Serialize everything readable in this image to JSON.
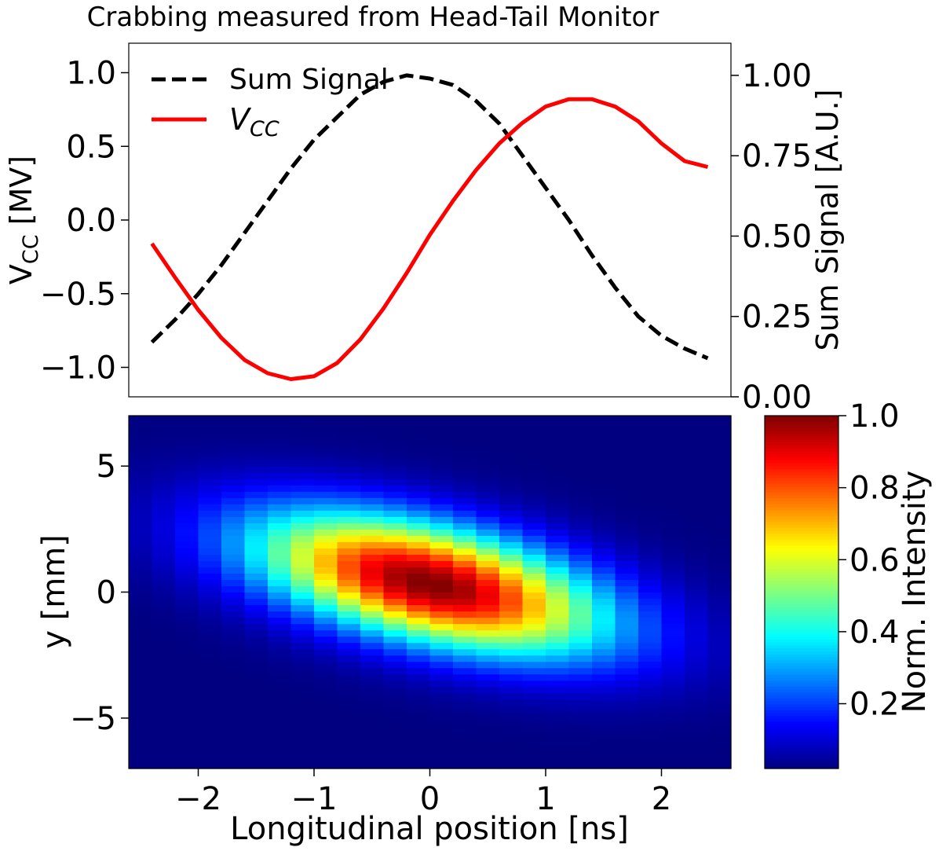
{
  "chart_data": [
    {
      "type": "line",
      "title": "Crabbing measured from Head-Tail Monitor",
      "xlim": [
        -2.6,
        2.6
      ],
      "ylabel_left": "V_CC [MV]",
      "ylim_left": [
        -1.2,
        1.2
      ],
      "yticks_left": [
        {
          "v": 1.0,
          "label": "1.0"
        },
        {
          "v": 0.5,
          "label": "0.5"
        },
        {
          "v": 0.0,
          "label": "0.0"
        },
        {
          "v": -0.5,
          "label": "−0.5"
        },
        {
          "v": -1.0,
          "label": "−1.0"
        }
      ],
      "ylabel_right": "Sum Signal [A.U.]",
      "ylim_right": [
        0.0,
        1.1
      ],
      "yticks_right": [
        {
          "v": 1.0,
          "label": "1.00"
        },
        {
          "v": 0.75,
          "label": "0.75"
        },
        {
          "v": 0.5,
          "label": "0.50"
        },
        {
          "v": 0.25,
          "label": "0.25"
        },
        {
          "v": 0.0,
          "label": "0.00"
        }
      ],
      "legend_position": "top-left",
      "x": [
        -2.4,
        -2.2,
        -2.0,
        -1.8,
        -1.6,
        -1.4,
        -1.2,
        -1.0,
        -0.8,
        -0.6,
        -0.4,
        -0.2,
        0.0,
        0.2,
        0.4,
        0.6,
        0.8,
        1.0,
        1.2,
        1.4,
        1.6,
        1.8,
        2.0,
        2.2,
        2.4
      ],
      "series": [
        {
          "name": "Sum Signal",
          "axis": "right",
          "color": "#000000",
          "style": "dashed",
          "values": [
            0.17,
            0.24,
            0.32,
            0.41,
            0.51,
            0.61,
            0.71,
            0.8,
            0.87,
            0.94,
            0.98,
            1.0,
            0.99,
            0.97,
            0.92,
            0.85,
            0.75,
            0.65,
            0.55,
            0.44,
            0.34,
            0.25,
            0.19,
            0.15,
            0.12
          ]
        },
        {
          "name": "V",
          "name_sub": "CC",
          "axis": "left",
          "color": "#ff0000",
          "style": "solid",
          "values": [
            -0.16,
            -0.39,
            -0.61,
            -0.8,
            -0.95,
            -1.04,
            -1.08,
            -1.06,
            -0.97,
            -0.81,
            -0.6,
            -0.36,
            -0.1,
            0.13,
            0.34,
            0.52,
            0.66,
            0.77,
            0.82,
            0.82,
            0.77,
            0.67,
            0.52,
            0.4,
            0.36
          ]
        }
      ]
    },
    {
      "type": "heatmap",
      "xlabel": "Longitudinal position [ns]",
      "ylabel": "y [mm]",
      "xlim": [
        -2.6,
        2.6
      ],
      "ylim": [
        -7,
        7
      ],
      "xticks": [
        {
          "v": -2,
          "label": "−2"
        },
        {
          "v": -1,
          "label": "−1"
        },
        {
          "v": 0,
          "label": "0"
        },
        {
          "v": 1,
          "label": "1"
        },
        {
          "v": 2,
          "label": "2"
        }
      ],
      "yticks": [
        {
          "v": 5,
          "label": "5"
        },
        {
          "v": 0,
          "label": "0"
        },
        {
          "v": -5,
          "label": "−5"
        }
      ],
      "x_bins": 26,
      "y_bins": 56,
      "intensity_model": {
        "amplitude": 1.0,
        "x_sigma_ns": 1.05,
        "y_sigma_mm": 1.65,
        "tilt_mm_per_ns": -0.95,
        "y_offset_mm": 0.35,
        "floor": 0.02
      },
      "colormap": "jet",
      "colorbar": {
        "label": "Norm. Intensity",
        "range": [
          0.02,
          1.0
        ],
        "ticks": [
          {
            "v": 1.0,
            "label": "1.0"
          },
          {
            "v": 0.8,
            "label": "0.8"
          },
          {
            "v": 0.6,
            "label": "0.6"
          },
          {
            "v": 0.4,
            "label": "0.4"
          },
          {
            "v": 0.2,
            "label": "0.2"
          }
        ]
      }
    }
  ]
}
